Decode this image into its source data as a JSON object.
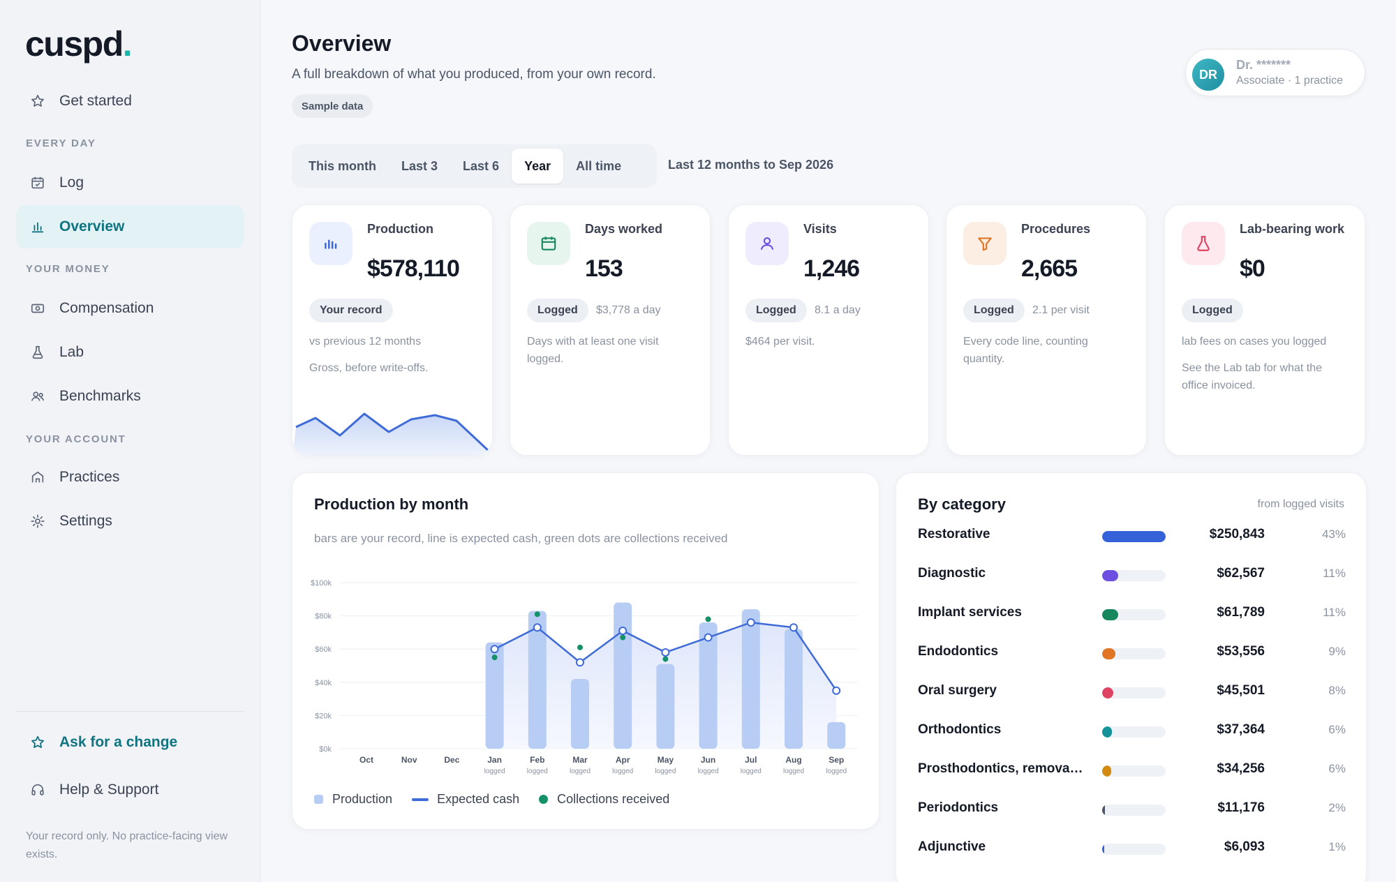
{
  "brand": {
    "name": "cuspd",
    "dot": "."
  },
  "nav": {
    "get_started": "Get started",
    "section_every_day": "EVERY DAY",
    "log": "Log",
    "overview": "Overview",
    "section_your_money": "YOUR MONEY",
    "compensation": "Compensation",
    "lab": "Lab",
    "benchmarks": "Benchmarks",
    "section_your_account": "YOUR ACCOUNT",
    "practices": "Practices",
    "settings": "Settings",
    "ask_for_change": "Ask for a change",
    "help_support": "Help & Support",
    "footer_note": "Your record only. No practice-facing view exists."
  },
  "header": {
    "title": "Overview",
    "subtitle": "A full breakdown of what you produced, from your own record.",
    "badge": "Sample data"
  },
  "user": {
    "initials": "DR",
    "name": "Dr. *******",
    "role": "Associate · 1 practice"
  },
  "tabs": [
    {
      "label": "This month"
    },
    {
      "label": "Last 3"
    },
    {
      "label": "Last 6"
    },
    {
      "label": "Year",
      "active": true
    },
    {
      "label": "All time"
    }
  ],
  "range_label": "Last 12 months to Sep 2026",
  "kpis": {
    "production": {
      "label": "Production",
      "value": "$578,110",
      "badge": "Your record",
      "note1": "vs previous 12 months",
      "note2": "Gross, before write-offs."
    },
    "days": {
      "label": "Days worked",
      "value": "153",
      "badge": "Logged",
      "side": "$3,778 a day",
      "note": "Days with at least one visit logged."
    },
    "visits": {
      "label": "Visits",
      "value": "1,246",
      "badge": "Logged",
      "side": "8.1 a day",
      "note": "$464 per visit."
    },
    "procedures": {
      "label": "Procedures",
      "value": "2,665",
      "badge": "Logged",
      "side": "2.1 per visit",
      "note": "Every code line, counting quantity."
    },
    "lab": {
      "label": "Lab-bearing work",
      "value": "$0",
      "badge": "Logged",
      "note1": "lab fees on cases you logged",
      "note2": "See the Lab tab for what the office invoiced."
    }
  },
  "chart_data": {
    "type": "bar",
    "title": "Production by month",
    "subtitle": "bars are your record, line is expected cash, green dots are collections received",
    "categories": [
      "Oct",
      "Nov",
      "Dec",
      "Jan",
      "Feb",
      "Mar",
      "Apr",
      "May",
      "Jun",
      "Jul",
      "Aug",
      "Sep"
    ],
    "sublabels": [
      "",
      "",
      "",
      "logged",
      "logged",
      "logged",
      "logged",
      "logged",
      "logged",
      "logged",
      "logged",
      "logged"
    ],
    "yticks": [
      "$100k",
      "$80k",
      "$60k",
      "$40k",
      "$20k",
      "$0k"
    ],
    "ylim": [
      0,
      100000
    ],
    "grid": true,
    "series": [
      {
        "name": "Production",
        "kind": "bar",
        "color": "#b8cdf3",
        "values": [
          null,
          null,
          null,
          64000,
          83000,
          42000,
          88000,
          51000,
          76000,
          84000,
          72000,
          16000
        ]
      },
      {
        "name": "Expected cash",
        "kind": "line",
        "color": "#3e6bd6",
        "values": [
          null,
          null,
          null,
          60000,
          73000,
          52000,
          71000,
          58000,
          67000,
          76000,
          73000,
          35000
        ]
      },
      {
        "name": "Collections received",
        "kind": "dot",
        "color": "#15916a",
        "values": [
          null,
          null,
          null,
          55000,
          81000,
          61000,
          67000,
          54000,
          78000,
          76000,
          73000,
          null
        ]
      }
    ]
  },
  "categories_card": {
    "title": "By category",
    "from": "from logged visits",
    "rows": [
      {
        "name": "Restorative",
        "amount": "$250,843",
        "pct": "43%",
        "share": 1.0,
        "color": "#3561d9"
      },
      {
        "name": "Diagnostic",
        "amount": "$62,567",
        "pct": "11%",
        "share": 0.25,
        "color": "#6c4fe0"
      },
      {
        "name": "Implant services",
        "amount": "$61,789",
        "pct": "11%",
        "share": 0.25,
        "color": "#17875e"
      },
      {
        "name": "Endodontics",
        "amount": "$53,556",
        "pct": "9%",
        "share": 0.21,
        "color": "#e07525"
      },
      {
        "name": "Oral surgery",
        "amount": "$45,501",
        "pct": "8%",
        "share": 0.18,
        "color": "#df4463"
      },
      {
        "name": "Orthodontics",
        "amount": "$37,364",
        "pct": "6%",
        "share": 0.15,
        "color": "#14939a"
      },
      {
        "name": "Prosthodontics, remova…",
        "amount": "$34,256",
        "pct": "6%",
        "share": 0.14,
        "color": "#d08b10"
      },
      {
        "name": "Periodontics",
        "amount": "$11,176",
        "pct": "2%",
        "share": 0.045,
        "color": "#4b5565"
      },
      {
        "name": "Adjunctive",
        "amount": "$6,093",
        "pct": "1%",
        "share": 0.025,
        "color": "#3561d9"
      }
    ]
  }
}
